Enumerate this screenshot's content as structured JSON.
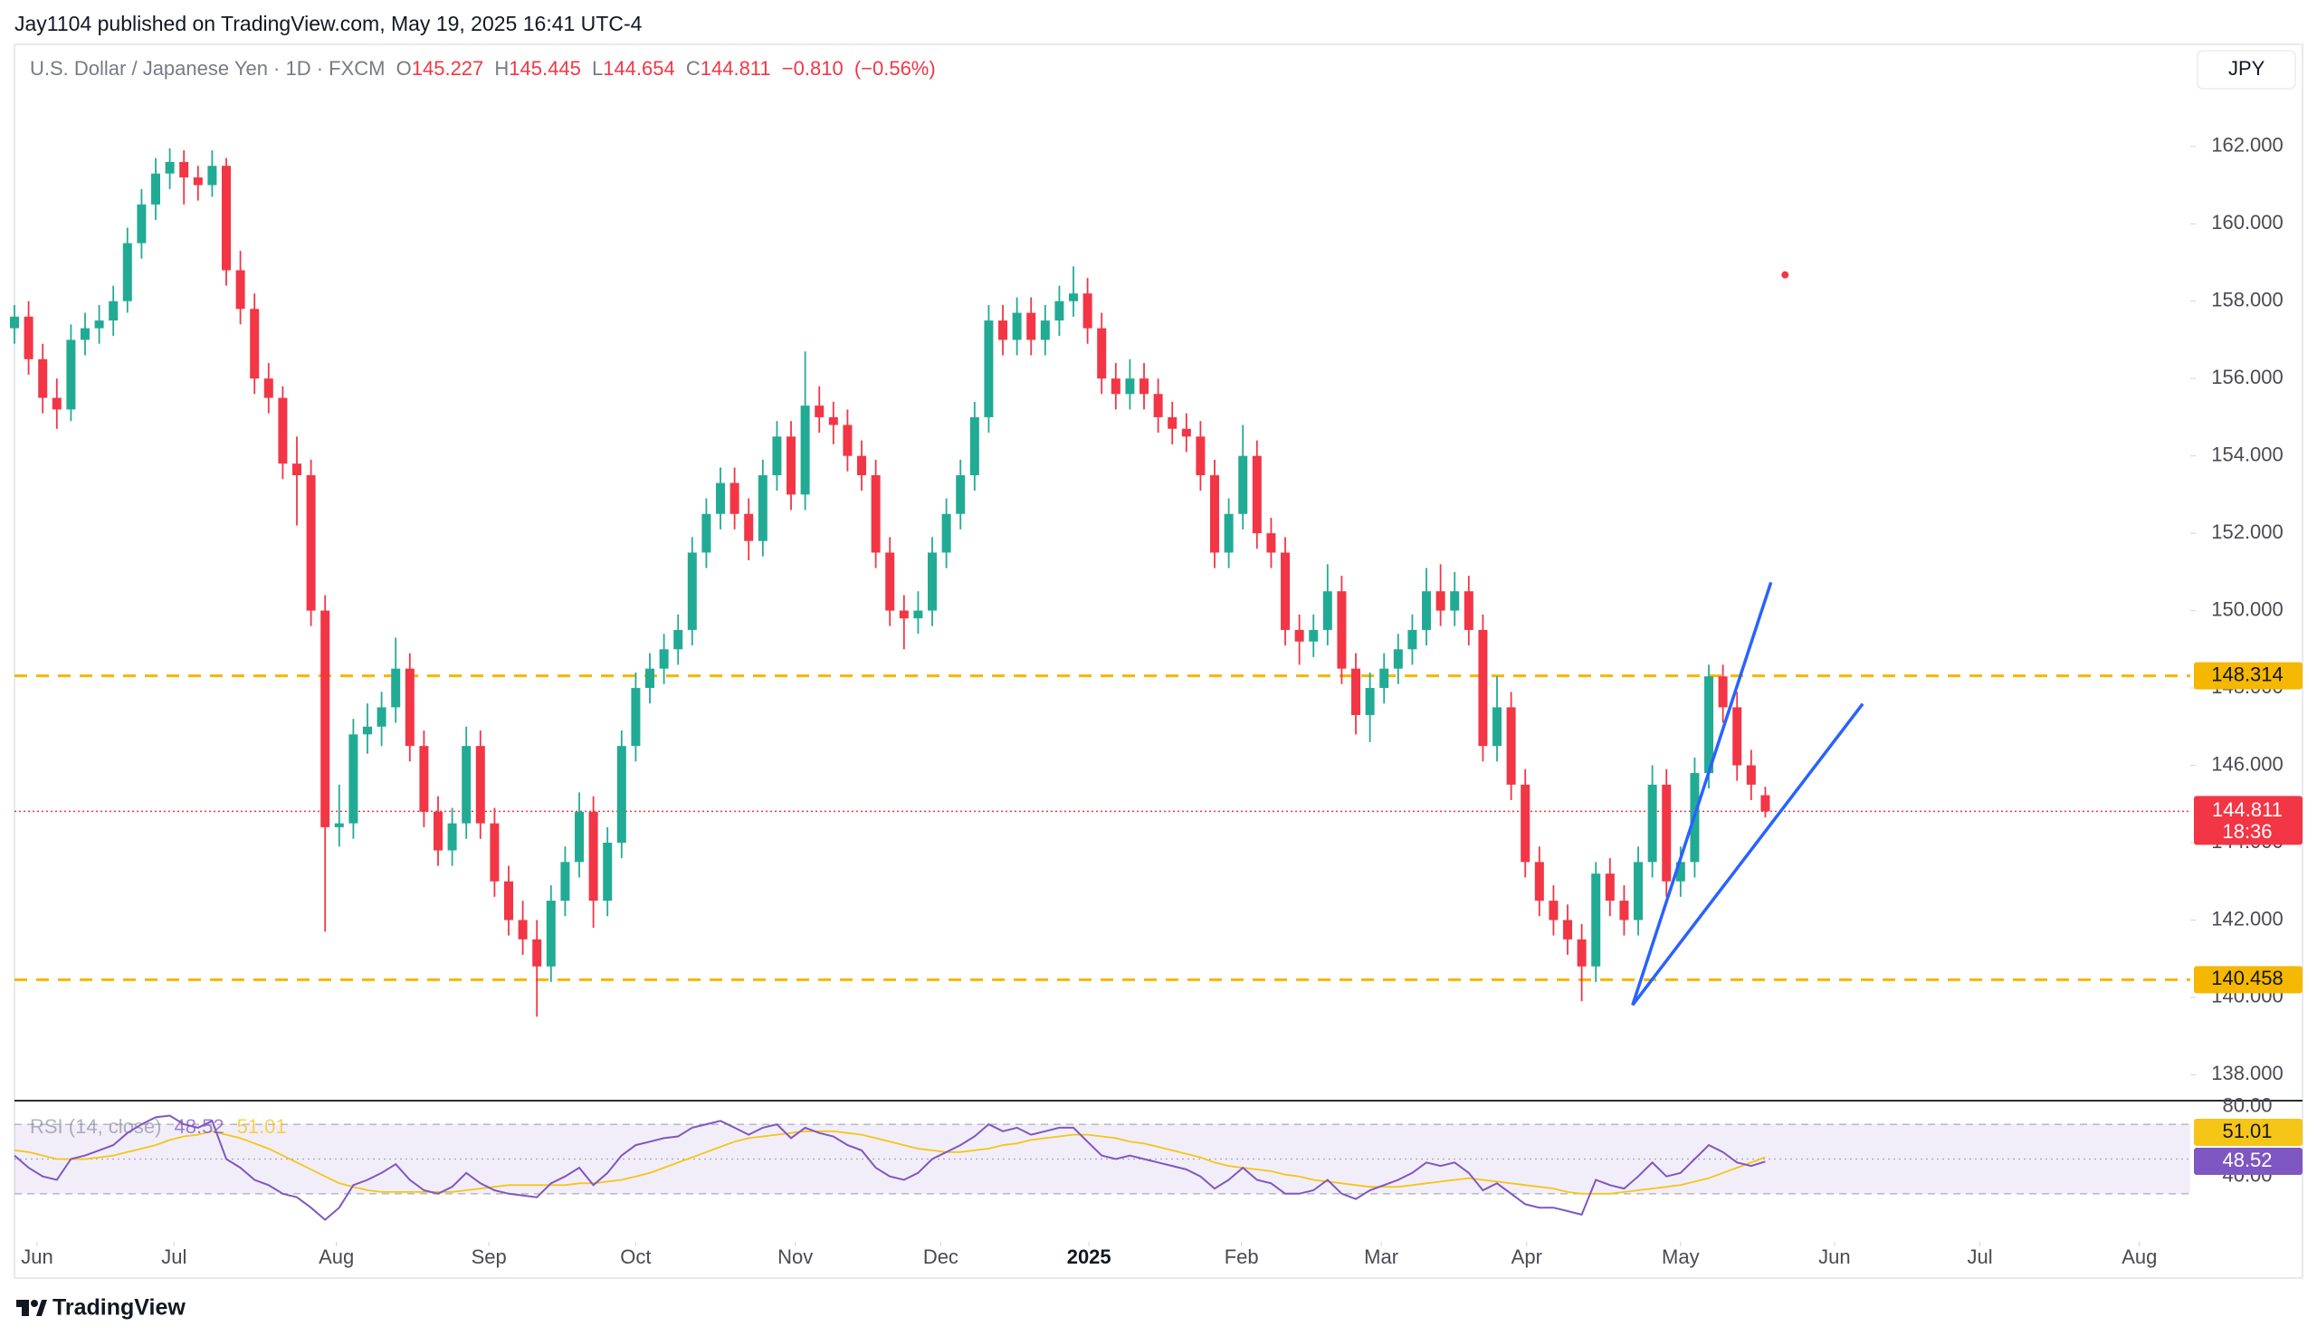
{
  "header": {
    "publisher": "Jay1104 published on TradingView.com, May 19, 2025 16:41 UTC-4"
  },
  "footer": {
    "logo": "TradingView"
  },
  "chart_data": {
    "type": "candlestick",
    "title": "U.S. Dollar / Japanese Yen · 1D · FXCM",
    "ohlc_letters": [
      "O",
      "H",
      "L",
      "C"
    ],
    "change": {
      "value": -0.81,
      "label": "−0.810"
    },
    "change_pct": {
      "value": -0.56,
      "label": "(−0.56%)"
    },
    "currency": "JPY",
    "countdown": "18:36",
    "up_color": "#22ab94",
    "down_color": "#f23645",
    "candles": [
      [
        157.3,
        157.9,
        156.9,
        157.6
      ],
      [
        157.6,
        158.0,
        156.1,
        156.5
      ],
      [
        156.5,
        156.9,
        155.1,
        155.5
      ],
      [
        155.5,
        156.0,
        154.7,
        155.2
      ],
      [
        155.2,
        157.4,
        154.9,
        157
      ],
      [
        157,
        157.7,
        156.6,
        157.3
      ],
      [
        157.3,
        157.9,
        156.9,
        157.5
      ],
      [
        157.5,
        158.4,
        157.1,
        158
      ],
      [
        158,
        159.9,
        157.7,
        159.5
      ],
      [
        159.5,
        160.9,
        159.1,
        160.5
      ],
      [
        160.5,
        161.7,
        160.1,
        161.3
      ],
      [
        161.3,
        161.95,
        160.9,
        161.6
      ],
      [
        161.6,
        161.9,
        160.5,
        161.2
      ],
      [
        161.2,
        161.5,
        160.6,
        161
      ],
      [
        161,
        161.9,
        160.7,
        161.5
      ],
      [
        161.5,
        161.7,
        158.4,
        158.8
      ],
      [
        158.8,
        159.3,
        157.4,
        157.8
      ],
      [
        157.8,
        158.2,
        155.6,
        156
      ],
      [
        156,
        156.4,
        155.1,
        155.5
      ],
      [
        155.5,
        155.8,
        153.4,
        153.8
      ],
      [
        153.8,
        154.5,
        152.2,
        153.5
      ],
      [
        153.5,
        153.9,
        149.6,
        150
      ],
      [
        150,
        150.4,
        141.7,
        144.4
      ],
      [
        144.4,
        145.5,
        143.9,
        144.5
      ],
      [
        144.5,
        147.2,
        144.1,
        146.8
      ],
      [
        146.8,
        147.6,
        146.3,
        147
      ],
      [
        147,
        147.9,
        146.5,
        147.5
      ],
      [
        147.5,
        149.3,
        147.1,
        148.5
      ],
      [
        148.5,
        148.9,
        146.1,
        146.5
      ],
      [
        146.5,
        146.9,
        144.4,
        144.8
      ],
      [
        144.8,
        145.2,
        143.4,
        143.8
      ],
      [
        143.8,
        144.9,
        143.4,
        144.5
      ],
      [
        144.5,
        147,
        144.1,
        146.5
      ],
      [
        146.5,
        146.9,
        144.1,
        144.5
      ],
      [
        144.5,
        144.9,
        142.6,
        143
      ],
      [
        143,
        143.4,
        141.6,
        142
      ],
      [
        142,
        142.5,
        141.1,
        141.5
      ],
      [
        141.5,
        142,
        139.5,
        140.8
      ],
      [
        140.8,
        142.9,
        140.4,
        142.5
      ],
      [
        142.5,
        143.9,
        142.1,
        143.5
      ],
      [
        143.5,
        145.3,
        143.1,
        144.8
      ],
      [
        144.8,
        145.2,
        141.8,
        142.5
      ],
      [
        142.5,
        144.4,
        142.1,
        144
      ],
      [
        144,
        146.9,
        143.6,
        146.5
      ],
      [
        146.5,
        148.4,
        146.1,
        148
      ],
      [
        148,
        148.9,
        147.6,
        148.5
      ],
      [
        148.5,
        149.4,
        148.1,
        149
      ],
      [
        149,
        149.9,
        148.6,
        149.5
      ],
      [
        149.5,
        151.9,
        149.1,
        151.5
      ],
      [
        151.5,
        152.9,
        151.1,
        152.5
      ],
      [
        152.5,
        153.7,
        152.1,
        153.3
      ],
      [
        153.3,
        153.7,
        152.1,
        152.5
      ],
      [
        152.5,
        152.9,
        151.3,
        151.8
      ],
      [
        151.8,
        153.9,
        151.4,
        153.5
      ],
      [
        153.5,
        154.9,
        153.1,
        154.5
      ],
      [
        154.5,
        154.9,
        152.6,
        153
      ],
      [
        153,
        156.7,
        152.6,
        155.3
      ],
      [
        155.3,
        155.8,
        154.6,
        155
      ],
      [
        155,
        155.4,
        154.3,
        154.8
      ],
      [
        154.8,
        155.2,
        153.6,
        154
      ],
      [
        154,
        154.4,
        153.1,
        153.5
      ],
      [
        153.5,
        153.9,
        151.1,
        151.5
      ],
      [
        151.5,
        151.9,
        149.6,
        150
      ],
      [
        150,
        150.4,
        149,
        149.8
      ],
      [
        149.8,
        150.5,
        149.4,
        150
      ],
      [
        150,
        151.9,
        149.6,
        151.5
      ],
      [
        151.5,
        152.9,
        151.1,
        152.5
      ],
      [
        152.5,
        153.9,
        152.1,
        153.5
      ],
      [
        153.5,
        155.4,
        153.1,
        155
      ],
      [
        155,
        157.9,
        154.6,
        157.5
      ],
      [
        157.5,
        157.9,
        156.6,
        157
      ],
      [
        157,
        158.1,
        156.6,
        157.7
      ],
      [
        157.7,
        158.1,
        156.6,
        157
      ],
      [
        157,
        157.9,
        156.6,
        157.5
      ],
      [
        157.5,
        158.4,
        157.1,
        158
      ],
      [
        158,
        158.9,
        157.6,
        158.2
      ],
      [
        158.2,
        158.6,
        156.9,
        157.3
      ],
      [
        157.3,
        157.7,
        155.6,
        156
      ],
      [
        156,
        156.4,
        155.2,
        155.6
      ],
      [
        155.6,
        156.5,
        155.2,
        156
      ],
      [
        156,
        156.4,
        155.2,
        155.6
      ],
      [
        155.6,
        156,
        154.6,
        155
      ],
      [
        155,
        155.4,
        154.3,
        154.7
      ],
      [
        154.7,
        155.1,
        154.1,
        154.5
      ],
      [
        154.5,
        154.9,
        153.1,
        153.5
      ],
      [
        153.5,
        153.9,
        151.1,
        151.5
      ],
      [
        151.5,
        152.9,
        151.1,
        152.5
      ],
      [
        152.5,
        154.8,
        152.1,
        154
      ],
      [
        154,
        154.4,
        151.6,
        152
      ],
      [
        152,
        152.4,
        151.1,
        151.5
      ],
      [
        151.5,
        151.9,
        149.1,
        149.5
      ],
      [
        149.5,
        149.9,
        148.6,
        149.2
      ],
      [
        149.2,
        149.9,
        148.8,
        149.5
      ],
      [
        149.5,
        151.2,
        149.1,
        150.5
      ],
      [
        150.5,
        150.9,
        148.1,
        148.5
      ],
      [
        148.5,
        148.9,
        146.8,
        147.3
      ],
      [
        147.3,
        148.4,
        146.6,
        148
      ],
      [
        148,
        148.9,
        147.6,
        148.5
      ],
      [
        148.5,
        149.4,
        148.1,
        149
      ],
      [
        149,
        149.9,
        148.6,
        149.5
      ],
      [
        149.5,
        151.1,
        149.1,
        150.5
      ],
      [
        150.5,
        151.2,
        149.6,
        150
      ],
      [
        150,
        151,
        149.6,
        150.5
      ],
      [
        150.5,
        150.9,
        149.1,
        149.5
      ],
      [
        149.5,
        149.9,
        146.1,
        146.5
      ],
      [
        146.5,
        148.3,
        146.1,
        147.5
      ],
      [
        147.5,
        147.9,
        145.1,
        145.5
      ],
      [
        145.5,
        145.9,
        143.1,
        143.5
      ],
      [
        143.5,
        143.9,
        142.1,
        142.5
      ],
      [
        142.5,
        142.9,
        141.6,
        142
      ],
      [
        142,
        142.4,
        141.1,
        141.5
      ],
      [
        141.5,
        141.9,
        139.9,
        140.8
      ],
      [
        140.8,
        143.5,
        140.4,
        143.2
      ],
      [
        143.2,
        143.6,
        142.1,
        142.5
      ],
      [
        142.5,
        142.9,
        141.6,
        142
      ],
      [
        142,
        143.9,
        141.6,
        143.5
      ],
      [
        143.5,
        146,
        143.1,
        145.5
      ],
      [
        145.5,
        145.9,
        142.6,
        143
      ],
      [
        143,
        143.9,
        142.6,
        143.5
      ],
      [
        143.5,
        146.2,
        143.1,
        145.8
      ],
      [
        145.8,
        148.6,
        145.4,
        148.3
      ],
      [
        148.3,
        148.6,
        147.1,
        147.5
      ],
      [
        147.5,
        147.9,
        145.6,
        146
      ],
      [
        146,
        146.4,
        145.1,
        145.5
      ],
      [
        145.227,
        145.445,
        144.654,
        144.811
      ]
    ],
    "xlim": [
      0,
      154.1
    ],
    "xticks": [
      {
        "value": 1.6,
        "label": "Jun"
      },
      {
        "value": 11.3,
        "label": "Jul"
      },
      {
        "value": 22.8,
        "label": "Aug"
      },
      {
        "value": 33.6,
        "label": "Sep"
      },
      {
        "value": 44,
        "label": "Oct"
      },
      {
        "value": 55.3,
        "label": "Nov"
      },
      {
        "value": 65.6,
        "label": "Dec"
      },
      {
        "value": 76.1,
        "label": "2025",
        "bold": true
      },
      {
        "value": 86.9,
        "label": "Feb"
      },
      {
        "value": 96.8,
        "label": "Mar"
      },
      {
        "value": 107.1,
        "label": "Apr"
      },
      {
        "value": 118,
        "label": "May"
      },
      {
        "value": 128.9,
        "label": "Jun"
      },
      {
        "value": 139.2,
        "label": "Jul"
      },
      {
        "value": 150.5,
        "label": "Aug"
      }
    ],
    "ylim": [
      137.33,
      164.64
    ],
    "yticks": [
      {
        "value": 138,
        "label": "138.000"
      },
      {
        "value": 140,
        "label": "140.000"
      },
      {
        "value": 142,
        "label": "142.000"
      },
      {
        "value": 144,
        "label": "144.000"
      },
      {
        "value": 146,
        "label": "146.000"
      },
      {
        "value": 148,
        "label": "148.000"
      },
      {
        "value": 150,
        "label": "150.000"
      },
      {
        "value": 152,
        "label": "152.000"
      },
      {
        "value": 154,
        "label": "154.000"
      },
      {
        "value": 156,
        "label": "156.000"
      },
      {
        "value": 158,
        "label": "158.000"
      },
      {
        "value": 160,
        "label": "160.000"
      },
      {
        "value": 162,
        "label": "162.000"
      }
    ],
    "levels": [
      {
        "value": 148.314,
        "color": "#f5b700"
      },
      {
        "value": 140.458,
        "color": "#f5b700"
      }
    ],
    "trendlines": [
      {
        "x": [
          114.6,
          124.4
        ],
        "y": [
          139.8,
          150.73
        ],
        "color": "#2962ff"
      },
      {
        "x": [
          114.6,
          130.9
        ],
        "y": [
          139.8,
          147.59
        ],
        "color": "#2962ff"
      }
    ],
    "marker": {
      "x": 125.4,
      "y": 158.68,
      "color": "#f23645"
    },
    "indicator": {
      "type": "rsi",
      "title": "RSI (14, close)",
      "ylim": [
        2.3,
        83.6
      ],
      "yticks": [
        {
          "value": 80,
          "label": "80.00"
        },
        {
          "value": 40,
          "label": "40.00"
        }
      ],
      "bands": [
        70,
        50,
        30
      ],
      "series": [
        {
          "color": "#7e57c2",
          "values": [
            52,
            45,
            40,
            38,
            50,
            52,
            55,
            58,
            65,
            70,
            74,
            75,
            70,
            68,
            72,
            50,
            45,
            38,
            35,
            30,
            28,
            22,
            15,
            22,
            35,
            38,
            42,
            47,
            38,
            32,
            30,
            34,
            42,
            36,
            32,
            30,
            29,
            28,
            36,
            40,
            45,
            35,
            42,
            52,
            58,
            60,
            62,
            63,
            68,
            70,
            72,
            68,
            64,
            68,
            70,
            62,
            68,
            65,
            63,
            58,
            55,
            45,
            40,
            38,
            42,
            50,
            54,
            58,
            63,
            70,
            66,
            68,
            64,
            66,
            68,
            68,
            60,
            52,
            50,
            52,
            50,
            48,
            46,
            44,
            40,
            33,
            38,
            45,
            38,
            36,
            30,
            30,
            32,
            38,
            30,
            27,
            32,
            35,
            38,
            42,
            48,
            46,
            48,
            42,
            32,
            36,
            30,
            24,
            22,
            22,
            20,
            18,
            38,
            35,
            33,
            40,
            48,
            40,
            42,
            50,
            58,
            54,
            48,
            46,
            48.52
          ]
        },
        {
          "color": "#f5c518",
          "values": [
            55,
            54,
            52,
            50,
            50,
            50,
            51,
            52,
            54,
            56,
            58,
            61,
            63,
            64,
            66,
            64,
            62,
            59,
            56,
            52,
            48,
            44,
            40,
            36,
            34,
            32,
            31,
            31,
            31,
            31,
            31,
            31,
            32,
            33,
            34,
            35,
            35,
            35,
            35,
            35,
            36,
            36,
            37,
            38,
            40,
            42,
            45,
            48,
            51,
            54,
            57,
            60,
            62,
            63,
            64,
            65,
            66,
            66,
            66,
            65,
            64,
            62,
            60,
            58,
            56,
            55,
            54,
            54,
            55,
            56,
            58,
            59,
            61,
            62,
            63,
            64,
            64,
            63,
            62,
            60,
            59,
            57,
            55,
            53,
            51,
            48,
            46,
            45,
            44,
            43,
            41,
            40,
            38,
            37,
            36,
            35,
            34,
            34,
            34,
            35,
            36,
            37,
            38,
            39,
            38,
            37,
            36,
            35,
            34,
            33,
            31,
            30,
            30,
            30,
            31,
            32,
            33,
            34,
            35,
            37,
            39,
            42,
            45,
            48,
            51.01
          ]
        }
      ]
    }
  }
}
